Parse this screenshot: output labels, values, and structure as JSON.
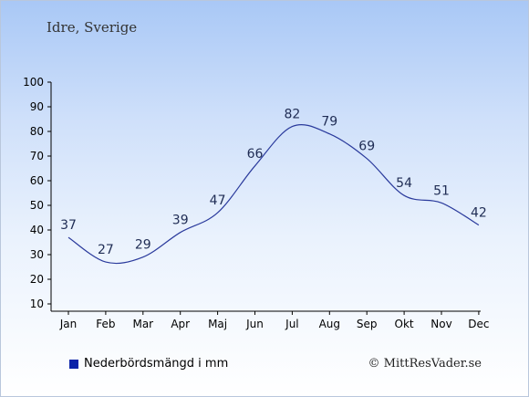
{
  "header": {
    "place": "Idre, Sverige"
  },
  "legend": {
    "label": "Nederbördsmängd i mm",
    "color": "#0a22a8"
  },
  "credit": {
    "text": "© MittResVader.se"
  },
  "colors": {
    "line": "#2a3a9c",
    "label": "#1f2c54",
    "axis": "#000000"
  },
  "chart_data": {
    "type": "line",
    "categories": [
      "Jan",
      "Feb",
      "Mar",
      "Apr",
      "Maj",
      "Jun",
      "Jul",
      "Aug",
      "Sep",
      "Okt",
      "Nov",
      "Dec"
    ],
    "series": [
      {
        "name": "Nederbördsmängd i mm",
        "values": [
          37,
          27,
          29,
          39,
          47,
          66,
          82,
          79,
          69,
          54,
          51,
          42
        ]
      }
    ],
    "data_labels": [
      "37",
      "27",
      "29",
      "39",
      "47",
      "66",
      "82",
      "79",
      "69",
      "54",
      "51",
      "42"
    ],
    "yticks": [
      "10",
      "20",
      "30",
      "40",
      "50",
      "60",
      "70",
      "80",
      "90",
      "100"
    ],
    "ylim": [
      10,
      100
    ],
    "grid": false,
    "legend_position": "bottom-left"
  }
}
